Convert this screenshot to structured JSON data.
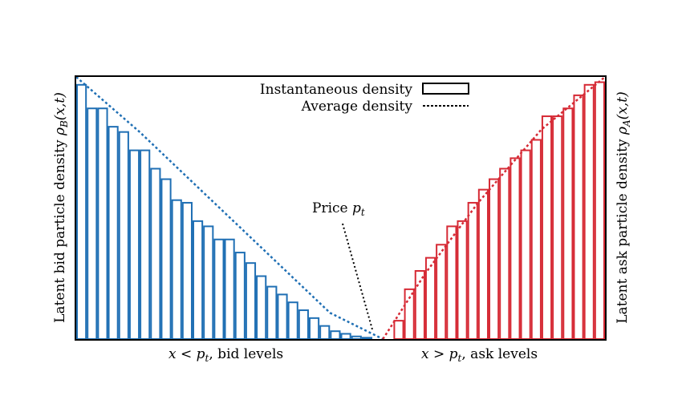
{
  "chart_data": {
    "type": "bar",
    "title": "",
    "ylabel_left": {
      "main": "Latent bid particle density",
      "symbol": "ρ",
      "sub": "B",
      "args": "(x,t)"
    },
    "ylabel_right": {
      "main": "Latent ask particle density",
      "symbol": "ρ",
      "sub": "A",
      "args": "(x,t)"
    },
    "xlabel_left": {
      "var": "x",
      "op": " < ",
      "sym": "p",
      "sub": "t",
      "tail": ", bid levels"
    },
    "xlabel_right": {
      "var": "x",
      "op": " > ",
      "sym": "p",
      "sub": "t",
      "tail": ", ask levels"
    },
    "annotation": {
      "main": "Price ",
      "sym": "p",
      "sub": "t"
    },
    "legend": {
      "placement": "top-center",
      "entries": [
        {
          "label": "Instantaneous density",
          "style": "bar"
        },
        {
          "label": "Average density",
          "style": "dotted"
        }
      ]
    },
    "xlim": [
      0,
      50
    ],
    "ylim": [
      0,
      1
    ],
    "price_position": 29,
    "bid_color": "#1f6fb4",
    "ask_color": "#d62a35",
    "bid_series": {
      "name": "",
      "values": [
        0.97,
        0.88,
        0.88,
        0.81,
        0.79,
        0.72,
        0.72,
        0.65,
        0.61,
        0.53,
        0.52,
        0.45,
        0.43,
        0.38,
        0.38,
        0.33,
        0.29,
        0.24,
        0.2,
        0.17,
        0.14,
        0.11,
        0.08,
        0.05,
        0.03,
        0.02,
        0.01,
        0.005
      ]
    },
    "ask_series": {
      "name": "",
      "values": [
        0.0,
        0.07,
        0.19,
        0.26,
        0.31,
        0.36,
        0.43,
        0.45,
        0.52,
        0.57,
        0.61,
        0.65,
        0.69,
        0.72,
        0.76,
        0.85,
        0.85,
        0.88,
        0.93,
        0.97,
        0.98
      ]
    },
    "bid_average": {
      "x": [
        0,
        6,
        12,
        18,
        24,
        29
      ],
      "y": [
        1.0,
        0.79,
        0.56,
        0.33,
        0.1,
        0.0
      ]
    },
    "ask_average": {
      "x": [
        29,
        33,
        38,
        44,
        50
      ],
      "y": [
        0.0,
        0.25,
        0.52,
        0.8,
        1.0
      ]
    }
  }
}
